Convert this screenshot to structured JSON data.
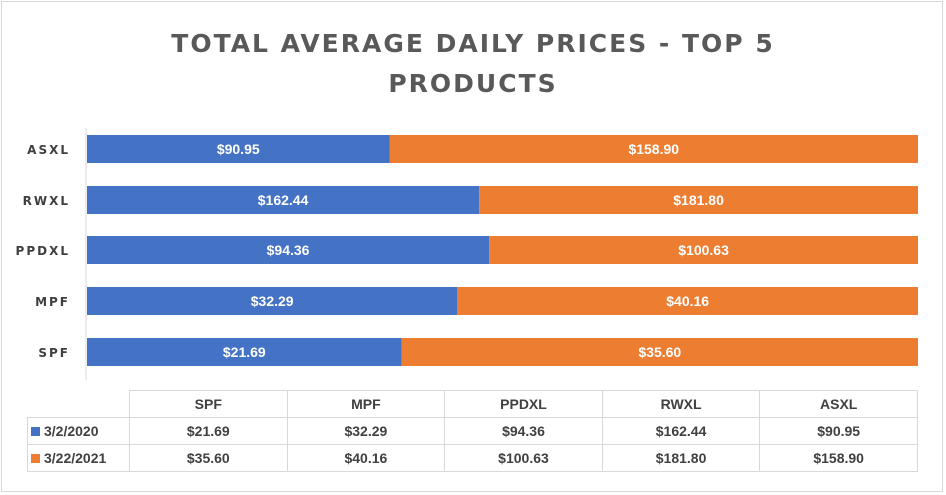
{
  "chart_data": {
    "type": "bar",
    "orientation": "horizontal",
    "stacked": "100%",
    "title_lines": [
      "TOTAL AVERAGE DAILY PRICES - TOP 5",
      "PRODUCTS"
    ],
    "categories": [
      "SPF",
      "MPF",
      "PPDXL",
      "RWXL",
      "ASXL"
    ],
    "series": [
      {
        "name": "3/2/2020",
        "color": "#4472c4",
        "values": [
          21.69,
          32.29,
          94.36,
          162.44,
          90.95
        ],
        "labels": [
          "$21.69",
          "$32.29",
          "$94.36",
          "$162.44",
          "$90.95"
        ]
      },
      {
        "name": "3/22/2021",
        "color": "#ed7d31",
        "values": [
          35.6,
          40.16,
          100.63,
          181.8,
          158.9
        ],
        "labels": [
          "$35.60",
          "$40.16",
          "$100.63",
          "$181.80",
          "$158.90"
        ]
      }
    ],
    "data_table": true,
    "grid": false,
    "legend": "data-table"
  }
}
